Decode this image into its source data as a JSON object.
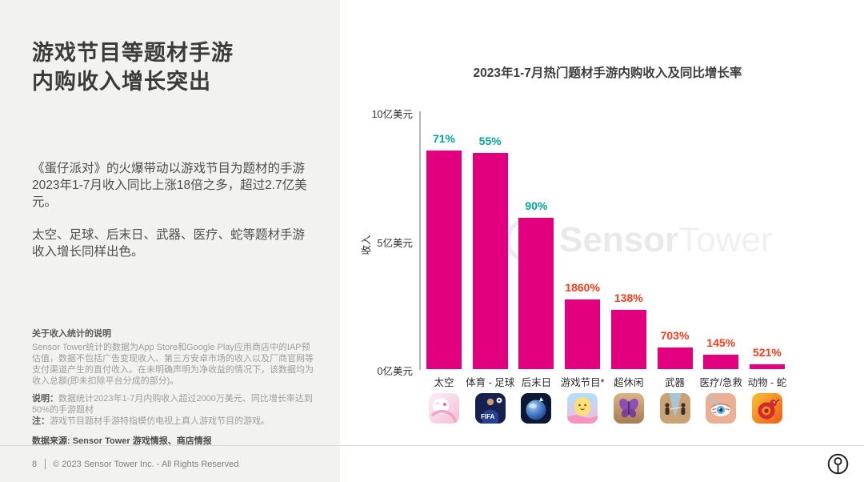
{
  "sidebar": {
    "title_line1": "游戏节目等题材手游",
    "title_line2": "内购收入增长突出",
    "paragraph1": "《蛋仔派对》的火爆带动以游戏节目为题材的手游2023年1-7月收入同比上涨18倍之多，超过2.7亿美元。",
    "paragraph2": "太空、足球、后末日、武器、医疗、蛇等题材手游收入增长同样出色。",
    "notes": {
      "heading": "关于收入统计的说明",
      "body": "Sensor Tower统计的数据为App Store和Google Play应用商店中的IAP预估值，数据不包括广告变现收入、第三方安卓市场的收入以及厂商官网等支付渠道产生的直付收入。在未明确声明为净收益的情况下，该数据均为收入总额(即未扣除平台分成的部分)。",
      "note1_label": "说明：",
      "note1_text": "数据统计2023年1-7月内购收入超过2000万美元、同比增长率达到50%的手游题材",
      "note2_label": "注：",
      "note2_text": "游戏节目题材手游特指模仿电视上真人游戏节目的游戏。",
      "source": "数据来源: Sensor Tower 游戏情报、商店情报"
    }
  },
  "footer": {
    "page_number": "8",
    "copyright": "© 2023 Sensor Tower Inc. - All Rights Reserved",
    "logo_name": "sensor-tower-logo"
  },
  "watermark": {
    "brand_bold": "Sensor",
    "brand_light": "Tower",
    "logo_name": "sensor-tower-logo-watermark"
  },
  "chart_data": {
    "type": "bar",
    "title": "2023年1-7月热门题材手游内购收入及同比增长率",
    "ylabel": "收入",
    "unit": "亿美元",
    "ylim": [
      0,
      10
    ],
    "grid": false,
    "legend_position": "none",
    "y_ticks": {
      "values": [
        0,
        5,
        10
      ],
      "labels": [
        "0亿美元",
        "5亿美元",
        "10亿美元"
      ]
    },
    "categories": [
      "太空",
      "体育 - 足球",
      "后末日",
      "游戏节目*",
      "超休闲",
      "武器",
      "医疗/急救",
      "动物 - 蛇"
    ],
    "series": [
      {
        "name": "内购收入（亿美元）",
        "values": [
          8.5,
          8.4,
          5.9,
          2.7,
          2.3,
          0.85,
          0.55,
          0.2
        ]
      },
      {
        "name": "同比增长率",
        "labels": [
          "71%",
          "55%",
          "90%",
          "1860%",
          "138%",
          "703%",
          "145%",
          "521%"
        ]
      }
    ],
    "growth_label_colors": [
      "#00A79B",
      "#00A79B",
      "#00A79B",
      "#FB3A1A",
      "#FB3A1A",
      "#FB3A1A",
      "#FB3A1A",
      "#FB3A1A"
    ],
    "bar_color": "#E2007E",
    "icons": [
      {
        "name": "anime-space-game-icon"
      },
      {
        "name": "fifa-soccer-game-icon",
        "label": "FIFA"
      },
      {
        "name": "planet-apocalypse-game-icon"
      },
      {
        "name": "eggy-party-game-icon"
      },
      {
        "name": "butterfly-puzzle-game-icon"
      },
      {
        "name": "weapon-duel-game-icon"
      },
      {
        "name": "eye-surgery-game-icon"
      },
      {
        "name": "snake-io-game-icon"
      }
    ]
  }
}
